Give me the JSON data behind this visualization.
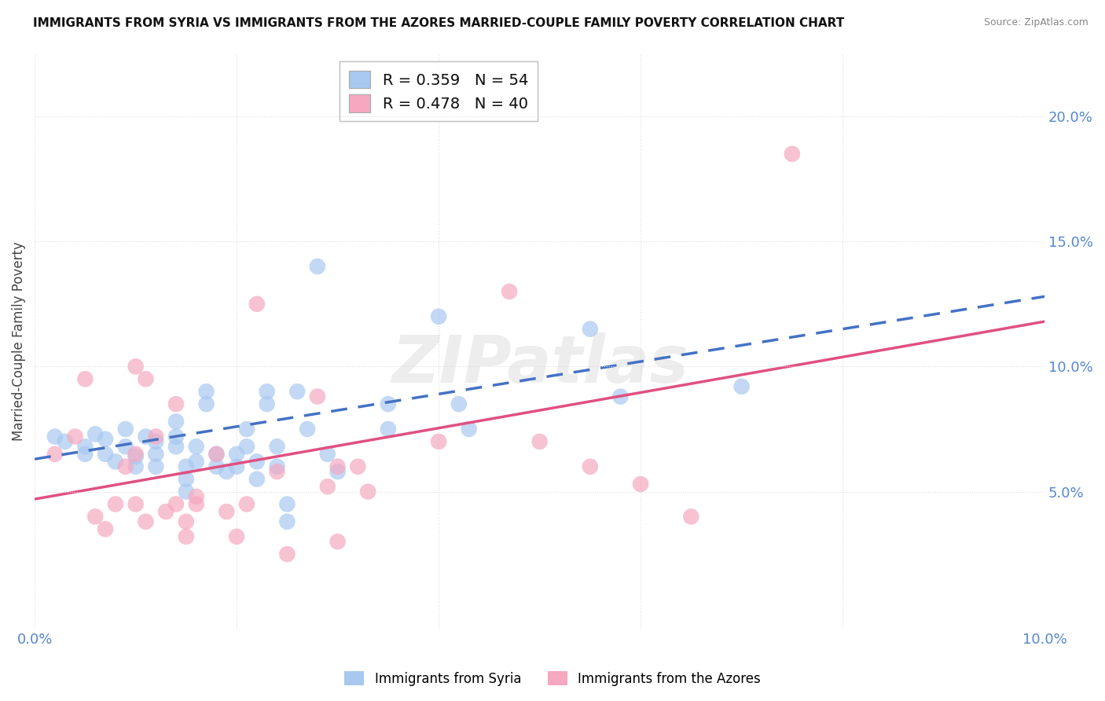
{
  "title": "IMMIGRANTS FROM SYRIA VS IMMIGRANTS FROM THE AZORES MARRIED-COUPLE FAMILY POVERTY CORRELATION CHART",
  "source": "Source: ZipAtlas.com",
  "ylabel": "Married-Couple Family Poverty",
  "xlim": [
    0.0,
    0.1
  ],
  "ylim": [
    -0.005,
    0.225
  ],
  "y_ticks": [
    0.05,
    0.1,
    0.15,
    0.2
  ],
  "x_ticks": [
    0.0,
    0.02,
    0.04,
    0.06,
    0.08,
    0.1
  ],
  "watermark": "ZIPatlas",
  "syria_color": "#a8c8f0",
  "azores_color": "#f5a8c0",
  "syria_line_color": "#4472c4",
  "azores_line_color": "#e05080",
  "tick_color": "#5588cc",
  "grid_color": "#dddddd",
  "background_color": "#ffffff",
  "legend1_label": "R = 0.359   N = 54",
  "legend2_label": "R = 0.478   N = 40",
  "bottom_legend1": "Immigrants from Syria",
  "bottom_legend2": "Immigrants from the Azores",
  "syria_scatter": [
    [
      0.002,
      0.072
    ],
    [
      0.003,
      0.07
    ],
    [
      0.005,
      0.065
    ],
    [
      0.005,
      0.068
    ],
    [
      0.006,
      0.073
    ],
    [
      0.007,
      0.071
    ],
    [
      0.007,
      0.065
    ],
    [
      0.008,
      0.062
    ],
    [
      0.009,
      0.075
    ],
    [
      0.009,
      0.068
    ],
    [
      0.01,
      0.064
    ],
    [
      0.01,
      0.06
    ],
    [
      0.011,
      0.072
    ],
    [
      0.012,
      0.07
    ],
    [
      0.012,
      0.065
    ],
    [
      0.012,
      0.06
    ],
    [
      0.014,
      0.078
    ],
    [
      0.014,
      0.072
    ],
    [
      0.014,
      0.068
    ],
    [
      0.015,
      0.06
    ],
    [
      0.015,
      0.055
    ],
    [
      0.015,
      0.05
    ],
    [
      0.016,
      0.068
    ],
    [
      0.016,
      0.062
    ],
    [
      0.017,
      0.09
    ],
    [
      0.017,
      0.085
    ],
    [
      0.018,
      0.065
    ],
    [
      0.018,
      0.06
    ],
    [
      0.019,
      0.058
    ],
    [
      0.02,
      0.065
    ],
    [
      0.02,
      0.06
    ],
    [
      0.021,
      0.075
    ],
    [
      0.021,
      0.068
    ],
    [
      0.022,
      0.062
    ],
    [
      0.022,
      0.055
    ],
    [
      0.023,
      0.09
    ],
    [
      0.023,
      0.085
    ],
    [
      0.024,
      0.068
    ],
    [
      0.024,
      0.06
    ],
    [
      0.025,
      0.045
    ],
    [
      0.025,
      0.038
    ],
    [
      0.026,
      0.09
    ],
    [
      0.027,
      0.075
    ],
    [
      0.028,
      0.14
    ],
    [
      0.029,
      0.065
    ],
    [
      0.03,
      0.058
    ],
    [
      0.035,
      0.085
    ],
    [
      0.035,
      0.075
    ],
    [
      0.04,
      0.12
    ],
    [
      0.042,
      0.085
    ],
    [
      0.043,
      0.075
    ],
    [
      0.055,
      0.115
    ],
    [
      0.058,
      0.088
    ],
    [
      0.07,
      0.092
    ]
  ],
  "azores_scatter": [
    [
      0.002,
      0.065
    ],
    [
      0.004,
      0.072
    ],
    [
      0.005,
      0.095
    ],
    [
      0.006,
      0.04
    ],
    [
      0.007,
      0.035
    ],
    [
      0.008,
      0.045
    ],
    [
      0.009,
      0.06
    ],
    [
      0.01,
      0.1
    ],
    [
      0.01,
      0.065
    ],
    [
      0.01,
      0.045
    ],
    [
      0.011,
      0.038
    ],
    [
      0.011,
      0.095
    ],
    [
      0.012,
      0.072
    ],
    [
      0.013,
      0.042
    ],
    [
      0.014,
      0.085
    ],
    [
      0.014,
      0.045
    ],
    [
      0.015,
      0.038
    ],
    [
      0.015,
      0.032
    ],
    [
      0.016,
      0.048
    ],
    [
      0.016,
      0.045
    ],
    [
      0.018,
      0.065
    ],
    [
      0.019,
      0.042
    ],
    [
      0.02,
      0.032
    ],
    [
      0.021,
      0.045
    ],
    [
      0.022,
      0.125
    ],
    [
      0.024,
      0.058
    ],
    [
      0.025,
      0.025
    ],
    [
      0.028,
      0.088
    ],
    [
      0.029,
      0.052
    ],
    [
      0.03,
      0.06
    ],
    [
      0.032,
      0.06
    ],
    [
      0.033,
      0.05
    ],
    [
      0.04,
      0.07
    ],
    [
      0.047,
      0.13
    ],
    [
      0.075,
      0.185
    ],
    [
      0.03,
      0.03
    ],
    [
      0.05,
      0.07
    ],
    [
      0.055,
      0.06
    ],
    [
      0.06,
      0.053
    ],
    [
      0.065,
      0.04
    ]
  ],
  "syria_reg_line": [
    [
      0.0,
      0.063
    ],
    [
      0.1,
      0.128
    ]
  ],
  "azores_reg_line": [
    [
      0.0,
      0.047
    ],
    [
      0.1,
      0.118
    ]
  ]
}
